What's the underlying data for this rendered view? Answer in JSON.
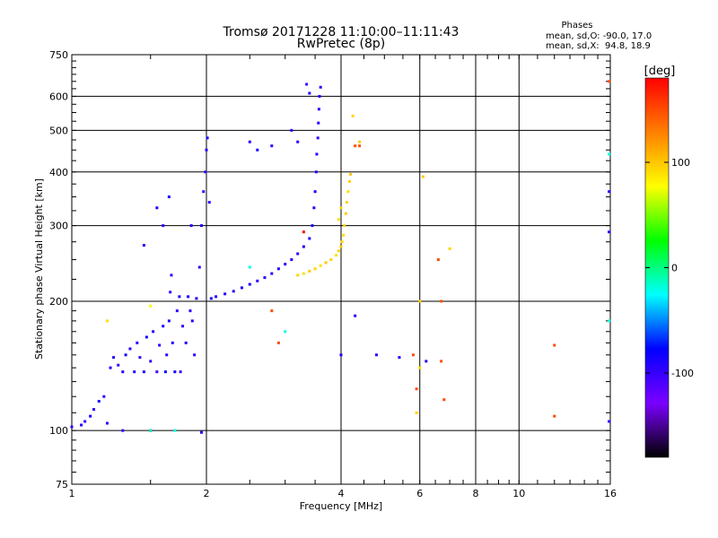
{
  "header": {
    "title_line1": "Tromsø 20171228 11:10:00–11:11:43",
    "title_line2": "RwPretec (8p)",
    "stats_heading": "Phases",
    "stats_line1": "mean, sd,O: -90.0, 17.0",
    "stats_line2": "mean, sd,X:  94.8, 18.9"
  },
  "colorbar": {
    "label": "[deg]",
    "tick_labels": [
      "100",
      "0",
      "-100"
    ],
    "ticks": [
      100,
      0,
      -100
    ],
    "range": [
      -180,
      180
    ],
    "colors": [
      "#000000",
      "#7a00ff",
      "#0000ff",
      "#00ffff",
      "#00ff00",
      "#ffff00",
      "#ff8000",
      "#ff0000"
    ]
  },
  "chart_data": {
    "type": "scatter",
    "title": "Tromsø 20171228 11:10:00–11:11:43",
    "subtitle": "RwPretec (8p)",
    "xlabel": "Frequency [MHz]",
    "ylabel": "Stationary phase Virtual Height [km]",
    "x_scale": "log",
    "y_scale": "log",
    "xlim": [
      1,
      16
    ],
    "ylim": [
      75,
      750
    ],
    "x_ticks": [
      1,
      2,
      4,
      6,
      8,
      10,
      16
    ],
    "x_tick_labels": [
      "1",
      "2",
      "4",
      "6",
      "8",
      "10",
      "16"
    ],
    "y_ticks": [
      75,
      100,
      200,
      300,
      400,
      500,
      600,
      750
    ],
    "y_tick_labels": [
      "75",
      "100",
      "200",
      "300",
      "400",
      "500",
      "600",
      "750"
    ],
    "x_gridlines": [
      2,
      4,
      6,
      8,
      10
    ],
    "y_gridlines": [
      100,
      200,
      300,
      400,
      500,
      600
    ],
    "color_variable": "phase [deg]",
    "series": [
      {
        "trace": "O-mode (blue, phase ≈ -90°)",
        "points": [
          [
            1.0,
            102,
            -95
          ],
          [
            1.05,
            103,
            -90
          ],
          [
            1.07,
            105,
            -100
          ],
          [
            1.1,
            108,
            -85
          ],
          [
            1.12,
            112,
            -95
          ],
          [
            1.15,
            117,
            -90
          ],
          [
            1.18,
            120,
            -100
          ],
          [
            1.2,
            104,
            -95
          ],
          [
            1.22,
            140,
            -90
          ],
          [
            1.24,
            148,
            -95
          ],
          [
            1.27,
            142,
            -100
          ],
          [
            1.3,
            137,
            -90
          ],
          [
            1.32,
            150,
            -85
          ],
          [
            1.35,
            155,
            -95
          ],
          [
            1.38,
            137,
            -90
          ],
          [
            1.4,
            160,
            -95
          ],
          [
            1.42,
            148,
            -100
          ],
          [
            1.45,
            137,
            -90
          ],
          [
            1.47,
            165,
            -85
          ],
          [
            1.5,
            145,
            -95
          ],
          [
            1.52,
            170,
            -90
          ],
          [
            1.55,
            137,
            -100
          ],
          [
            1.57,
            158,
            -95
          ],
          [
            1.6,
            175,
            -90
          ],
          [
            1.62,
            137,
            -85
          ],
          [
            1.63,
            150,
            -95
          ],
          [
            1.65,
            180,
            -90
          ],
          [
            1.66,
            210,
            -100
          ],
          [
            1.67,
            230,
            -95
          ],
          [
            1.68,
            160,
            -90
          ],
          [
            1.7,
            137,
            -85
          ],
          [
            1.72,
            190,
            -95
          ],
          [
            1.74,
            205,
            -90
          ],
          [
            1.75,
            137,
            -100
          ],
          [
            1.77,
            175,
            -95
          ],
          [
            1.8,
            160,
            -90
          ],
          [
            1.82,
            205,
            -85
          ],
          [
            1.84,
            190,
            -95
          ],
          [
            1.86,
            180,
            -90
          ],
          [
            1.88,
            150,
            -95
          ],
          [
            1.9,
            203,
            -90
          ],
          [
            1.93,
            240,
            -95
          ],
          [
            1.95,
            300,
            -90
          ],
          [
            1.97,
            360,
            -100
          ],
          [
            1.99,
            400,
            -95
          ],
          [
            2.0,
            450,
            -90
          ],
          [
            2.01,
            480,
            -85
          ],
          [
            2.03,
            340,
            -95
          ],
          [
            2.05,
            203,
            -90
          ],
          [
            2.1,
            205,
            -95
          ],
          [
            2.2,
            208,
            -90
          ],
          [
            2.3,
            211,
            -95
          ],
          [
            2.4,
            215,
            -90
          ],
          [
            2.5,
            219,
            -85
          ],
          [
            2.6,
            223,
            -95
          ],
          [
            2.7,
            227,
            -90
          ],
          [
            2.8,
            232,
            -95
          ],
          [
            2.9,
            238,
            -90
          ],
          [
            3.0,
            244,
            -95
          ],
          [
            3.1,
            250,
            -90
          ],
          [
            3.2,
            258,
            -95
          ],
          [
            3.3,
            268,
            -90
          ],
          [
            3.4,
            280,
            -95
          ],
          [
            3.45,
            300,
            -90
          ],
          [
            3.48,
            330,
            -95
          ],
          [
            3.5,
            360,
            -90
          ],
          [
            3.52,
            400,
            -95
          ],
          [
            3.53,
            440,
            -90
          ],
          [
            3.55,
            480,
            -95
          ],
          [
            3.56,
            520,
            -90
          ],
          [
            3.57,
            560,
            -95
          ],
          [
            3.58,
            600,
            -90
          ],
          [
            3.6,
            630,
            -95
          ],
          [
            3.35,
            640,
            -100
          ],
          [
            3.4,
            610,
            -90
          ],
          [
            3.1,
            500,
            -95
          ],
          [
            3.2,
            470,
            -90
          ],
          [
            2.5,
            470,
            -95
          ],
          [
            2.6,
            450,
            -90
          ],
          [
            2.8,
            460,
            -95
          ],
          [
            1.55,
            330,
            -90
          ],
          [
            1.6,
            300,
            -95
          ],
          [
            1.65,
            350,
            -90
          ],
          [
            1.45,
            270,
            -95
          ],
          [
            1.85,
            300,
            -90
          ],
          [
            1.3,
            100,
            -95
          ],
          [
            1.5,
            100,
            -90
          ],
          [
            1.95,
            99,
            -95
          ],
          [
            6.2,
            145,
            -90
          ],
          [
            4.8,
            150,
            -95
          ],
          [
            5.4,
            148,
            -90
          ],
          [
            4.3,
            185,
            -95
          ],
          [
            4.0,
            150,
            -90
          ],
          [
            15.9,
            105,
            -95
          ],
          [
            15.9,
            290,
            -90
          ],
          [
            15.9,
            360,
            -95
          ]
        ]
      },
      {
        "trace": "X-mode (yellow, phase ≈ +95°)",
        "points": [
          [
            3.2,
            230,
            95
          ],
          [
            3.3,
            232,
            90
          ],
          [
            3.4,
            235,
            100
          ],
          [
            3.5,
            238,
            95
          ],
          [
            3.6,
            242,
            90
          ],
          [
            3.7,
            246,
            100
          ],
          [
            3.8,
            250,
            95
          ],
          [
            3.9,
            256,
            90
          ],
          [
            3.95,
            262,
            95
          ],
          [
            4.0,
            268,
            100
          ],
          [
            4.02,
            275,
            95
          ],
          [
            4.05,
            285,
            90
          ],
          [
            4.07,
            300,
            95
          ],
          [
            4.1,
            320,
            100
          ],
          [
            4.12,
            340,
            95
          ],
          [
            4.15,
            360,
            90
          ],
          [
            4.18,
            380,
            95
          ],
          [
            4.2,
            395,
            100
          ],
          [
            4.0,
            330,
            95
          ],
          [
            3.95,
            310,
            90
          ],
          [
            4.25,
            540,
            95
          ],
          [
            4.4,
            470,
            100
          ],
          [
            5.9,
            110,
            95
          ],
          [
            6.0,
            140,
            90
          ],
          [
            6.0,
            200,
            95
          ],
          [
            6.1,
            390,
            100
          ],
          [
            7.0,
            265,
            95
          ]
        ]
      },
      {
        "trace": "scattered echoes (other phases)",
        "points": [
          [
            1.5,
            100,
            -10
          ],
          [
            1.7,
            100,
            -20
          ],
          [
            1.2,
            180,
            90
          ],
          [
            1.5,
            195,
            80
          ],
          [
            2.8,
            190,
            150
          ],
          [
            2.9,
            160,
            150
          ],
          [
            3.0,
            170,
            -20
          ],
          [
            3.3,
            290,
            180
          ],
          [
            2.5,
            240,
            -20
          ],
          [
            4.3,
            460,
            150
          ],
          [
            4.4,
            460,
            150
          ],
          [
            5.8,
            150,
            150
          ],
          [
            6.6,
            250,
            150
          ],
          [
            6.7,
            200,
            150
          ],
          [
            6.7,
            145,
            150
          ],
          [
            6.8,
            118,
            150
          ],
          [
            12.0,
            158,
            150
          ],
          [
            12.0,
            108,
            150
          ],
          [
            15.9,
            650,
            150
          ],
          [
            15.9,
            180,
            -20
          ],
          [
            15.9,
            440,
            -20
          ],
          [
            5.9,
            125,
            150
          ]
        ]
      }
    ]
  }
}
